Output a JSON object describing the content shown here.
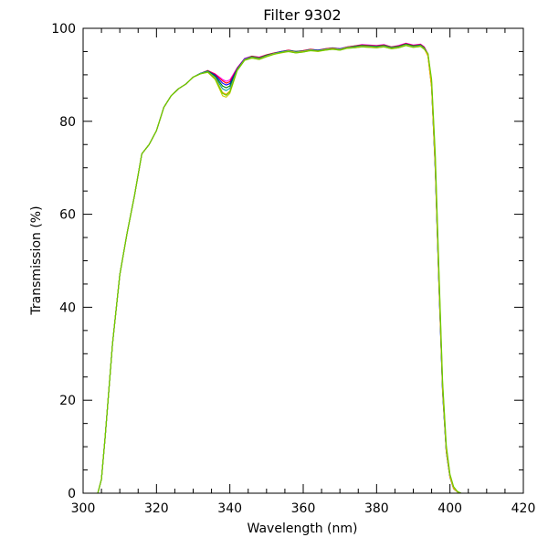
{
  "chart_data": {
    "type": "line",
    "title": "Filter 9302",
    "xlabel": "Wavelength (nm)",
    "ylabel": "Transmission (%)",
    "xlim": [
      300,
      420
    ],
    "ylim": [
      0,
      100
    ],
    "x_ticks": [
      300,
      320,
      340,
      360,
      380,
      400,
      420
    ],
    "y_ticks": [
      0,
      20,
      40,
      60,
      80,
      100
    ],
    "grid": false,
    "legend": "none",
    "x": [
      300,
      303,
      304,
      305,
      306,
      308,
      310,
      312,
      314,
      316,
      318,
      320,
      322,
      324,
      326,
      328,
      330,
      332,
      334,
      336,
      338,
      339,
      340,
      342,
      344,
      346,
      348,
      350,
      352,
      354,
      356,
      358,
      360,
      362,
      364,
      366,
      368,
      370,
      372,
      374,
      376,
      378,
      380,
      382,
      384,
      386,
      388,
      390,
      392,
      393,
      394,
      395,
      396,
      397,
      398,
      399,
      400,
      401,
      402,
      403,
      404,
      405,
      408,
      412,
      416,
      420
    ],
    "series": [
      {
        "color": "#ff00ff",
        "values": [
          0,
          0,
          0,
          3,
          12,
          32,
          47,
          56,
          64,
          73,
          75,
          78,
          83,
          85.5,
          87,
          88,
          89.5,
          90.3,
          90.9,
          90.2,
          89,
          88.6,
          88.9,
          91.5,
          93.5,
          94,
          93.8,
          94.3,
          94.7,
          95,
          95.3,
          95,
          95.2,
          95.5,
          95.3,
          95.6,
          95.8,
          95.6,
          96,
          96.2,
          96.5,
          96.4,
          96.3,
          96.5,
          96,
          96.3,
          96.8,
          96.4,
          96.6,
          96,
          94.5,
          88,
          70,
          45,
          22,
          9,
          3.5,
          1,
          0.3,
          0,
          0,
          0,
          0,
          0,
          0,
          0
        ]
      },
      {
        "color": "#ff0000",
        "values": [
          0,
          0,
          0,
          3,
          12,
          32,
          47,
          56,
          64,
          73,
          75,
          78,
          83,
          85.5,
          87,
          88,
          89.5,
          90.3,
          90.9,
          90.1,
          88.7,
          88.2,
          88.5,
          91.4,
          93.4,
          94,
          93.7,
          94.3,
          94.7,
          95,
          95.3,
          95,
          95.2,
          95.5,
          95.3,
          95.6,
          95.8,
          95.6,
          96,
          96.2,
          96.4,
          96.3,
          96.2,
          96.4,
          96,
          96.2,
          96.7,
          96.3,
          96.5,
          95.9,
          94.4,
          87.8,
          70.5,
          45.5,
          22.5,
          9.2,
          3.6,
          1,
          0.3,
          0,
          0,
          0,
          0,
          0,
          0,
          0
        ]
      },
      {
        "color": "#0000ff",
        "values": [
          0,
          0,
          0,
          3,
          12,
          32,
          47,
          56,
          64,
          73,
          75,
          78,
          83,
          85.5,
          87,
          88,
          89.5,
          90.3,
          90.8,
          89.9,
          88.2,
          87.8,
          88.1,
          91.3,
          93.4,
          93.9,
          93.6,
          94.2,
          94.6,
          95,
          95.2,
          95,
          95.1,
          95.4,
          95.3,
          95.5,
          95.7,
          95.6,
          95.9,
          96.1,
          96.3,
          96.2,
          96.1,
          96.3,
          95.9,
          96.1,
          96.6,
          96.2,
          96.4,
          95.8,
          94.2,
          87.5,
          69.5,
          44.5,
          21.5,
          8.8,
          3.4,
          1,
          0.3,
          0,
          0,
          0,
          0,
          0,
          0,
          0
        ]
      },
      {
        "color": "#008000",
        "values": [
          0,
          0,
          0,
          3,
          12,
          32,
          47,
          56,
          64,
          73,
          75,
          78,
          83,
          85.5,
          87,
          88,
          89.5,
          90.3,
          90.8,
          89.7,
          87.6,
          87.2,
          87.6,
          91.2,
          93.3,
          93.9,
          93.6,
          94.2,
          94.6,
          94.9,
          95.2,
          95,
          95.1,
          95.4,
          95.2,
          95.5,
          95.7,
          95.5,
          95.9,
          96.1,
          96.3,
          96.2,
          96.1,
          96.3,
          95.9,
          96.1,
          96.6,
          96.2,
          96.4,
          95.8,
          94.3,
          87.6,
          70,
          45,
          22,
          9,
          3.5,
          1,
          0.3,
          0,
          0,
          0,
          0,
          0,
          0,
          0
        ]
      },
      {
        "color": "#00a0a0",
        "values": [
          0,
          0,
          0,
          3,
          12,
          32,
          47,
          56,
          64,
          73,
          75,
          78,
          83,
          85.5,
          87,
          88,
          89.5,
          90.3,
          90.7,
          89.5,
          87,
          86.6,
          87.1,
          91.1,
          93.3,
          93.8,
          93.5,
          94.1,
          94.6,
          94.9,
          95.2,
          94.9,
          95.1,
          95.4,
          95.2,
          95.5,
          95.7,
          95.5,
          95.9,
          96,
          96.2,
          96.1,
          96,
          96.2,
          95.8,
          96,
          96.5,
          96.1,
          96.3,
          95.7,
          94.1,
          87.3,
          69.8,
          44.8,
          21.8,
          8.9,
          3.4,
          1,
          0.3,
          0,
          0,
          0,
          0,
          0,
          0,
          0
        ]
      },
      {
        "color": "#ffa500",
        "values": [
          0,
          0,
          0,
          3,
          12,
          32,
          47,
          56,
          64,
          73,
          75,
          78,
          83,
          85.5,
          87,
          88,
          89.5,
          90.2,
          90.6,
          89.3,
          86.2,
          85.8,
          86.5,
          91,
          93.2,
          93.7,
          93.4,
          94,
          94.5,
          94.8,
          95.1,
          94.8,
          95,
          95.3,
          95.1,
          95.4,
          95.6,
          95.4,
          95.8,
          95.9,
          96.1,
          96,
          95.9,
          96.1,
          95.7,
          95.9,
          96.4,
          96,
          96.2,
          95.6,
          94,
          87.2,
          70.2,
          45.2,
          22.2,
          9.1,
          3.5,
          1,
          0.3,
          0,
          0,
          0,
          0,
          0,
          0,
          0
        ]
      },
      {
        "color": "#cccc00",
        "values": [
          0,
          0,
          0,
          3,
          12,
          32,
          47,
          56,
          64,
          73,
          75,
          78,
          83,
          85.5,
          87,
          88,
          89.5,
          90.2,
          90.5,
          89,
          85.5,
          85.2,
          86,
          90.9,
          93.1,
          93.6,
          93.3,
          93.9,
          94.4,
          94.7,
          95,
          94.7,
          94.9,
          95.2,
          95,
          95.3,
          95.5,
          95.3,
          95.7,
          95.8,
          96,
          95.9,
          95.8,
          96,
          95.6,
          95.8,
          96.3,
          95.9,
          96.1,
          95.5,
          94.5,
          88.5,
          72,
          47,
          23.5,
          10,
          4,
          1.3,
          0.4,
          0,
          0,
          0,
          0,
          0,
          0,
          0
        ]
      },
      {
        "color": "#66cc00",
        "values": [
          0,
          0,
          0,
          3,
          12,
          32,
          47,
          56,
          64,
          73,
          75,
          78,
          83,
          85.5,
          87,
          88,
          89.5,
          90.2,
          90.6,
          89.1,
          86,
          85.6,
          86.3,
          90.9,
          93.1,
          93.6,
          93.3,
          93.9,
          94.4,
          94.8,
          95,
          94.7,
          94.9,
          95.2,
          95.1,
          95.3,
          95.5,
          95.3,
          95.7,
          95.8,
          96,
          95.9,
          95.8,
          96,
          95.6,
          95.8,
          96.3,
          95.9,
          96.1,
          95.5,
          94.6,
          89,
          73,
          48,
          24,
          10.3,
          4.1,
          1.4,
          0.4,
          0,
          0,
          0,
          0,
          0,
          0,
          0
        ]
      }
    ]
  }
}
